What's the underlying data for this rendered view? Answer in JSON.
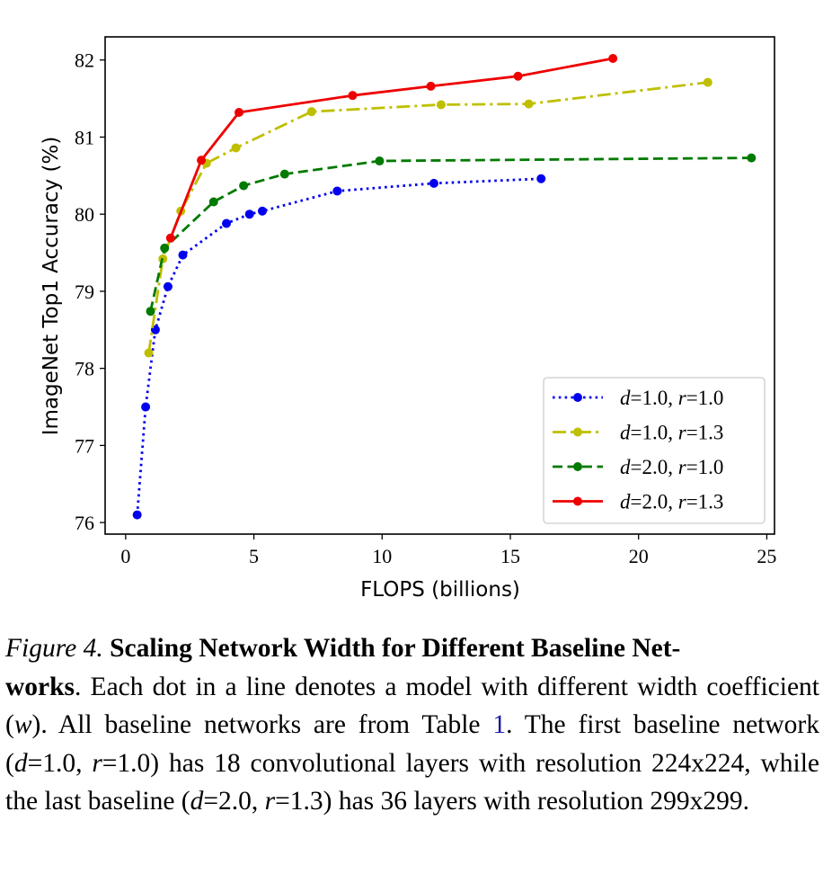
{
  "chart_data": {
    "type": "line",
    "title": "",
    "xlabel": "FLOPS (billions)",
    "ylabel": "ImageNet Top1 Accuracy (%)",
    "xlim": [
      -0.8,
      25.3
    ],
    "ylim": [
      75.85,
      82.3
    ],
    "xticks": [
      0,
      5,
      10,
      15,
      20,
      25
    ],
    "yticks": [
      76,
      77,
      78,
      79,
      80,
      81,
      82
    ],
    "xtick_labels": [
      "0",
      "5",
      "10",
      "15",
      "20",
      "25"
    ],
    "ytick_labels": [
      "76",
      "77",
      "78",
      "79",
      "80",
      "81",
      "82"
    ],
    "legend_position": "lower-right",
    "series": [
      {
        "name": "d=1.0, r=1.0",
        "label_parts": [
          "d",
          "=1.0, ",
          "r",
          "=1.0"
        ],
        "color": "#0000ee",
        "style": "dotted",
        "x": [
          0.45,
          0.78,
          1.16,
          1.65,
          2.23,
          3.93,
          4.83,
          5.33,
          8.25,
          12.02,
          16.2
        ],
        "y": [
          76.1,
          77.5,
          78.5,
          79.06,
          79.47,
          79.88,
          80.0,
          80.04,
          80.3,
          80.4,
          80.46
        ]
      },
      {
        "name": "d=1.0, r=1.3",
        "label_parts": [
          "d",
          "=1.0, ",
          "r",
          "=1.3"
        ],
        "color": "#bfbf00",
        "style": "dashdot",
        "x": [
          0.9,
          1.45,
          2.15,
          3.15,
          4.3,
          7.25,
          12.3,
          15.72,
          22.7
        ],
        "y": [
          78.2,
          79.42,
          80.04,
          80.66,
          80.86,
          81.33,
          81.42,
          81.43,
          81.71
        ]
      },
      {
        "name": "d=2.0, r=1.0",
        "label_parts": [
          "d",
          "=2.0, ",
          "r",
          "=1.0"
        ],
        "color": "#007a00",
        "style": "dashed",
        "x": [
          0.97,
          1.52,
          3.43,
          4.6,
          6.2,
          9.9,
          24.4
        ],
        "y": [
          78.74,
          79.56,
          80.16,
          80.37,
          80.52,
          80.69,
          80.73
        ]
      },
      {
        "name": "d=2.0, r=1.3",
        "label_parts": [
          "d",
          "=2.0, ",
          "r",
          "=1.3"
        ],
        "color": "#ee0000",
        "style": "solid",
        "x": [
          1.75,
          2.95,
          4.42,
          8.85,
          11.9,
          15.3,
          19.0
        ],
        "y": [
          79.69,
          80.7,
          81.32,
          81.54,
          81.66,
          81.79,
          82.02
        ]
      }
    ]
  },
  "caption": {
    "figure_label": "Figure 4.",
    "bold_title": "Scaling Network Width for Different Baseline Networks",
    "bold_title_line1": "Scaling Network Width for Different Baseline Net-",
    "bold_title_line2": "works",
    "s1": ". Each dot in a line denotes a model with different width coefficient (",
    "w_symbol": "w",
    "s2": "). All baseline networks are from Table ",
    "table_ref": "1",
    "s3": ". The first baseline network (",
    "d1": "d",
    "s4": "=1.0, ",
    "r1": "r",
    "s5": "=1.0) has 18 convolutional layers with resolution 224x224, while the last baseline (",
    "d2": "d",
    "s6": "=2.0, ",
    "r2": "r",
    "s7": "=1.3) has 36 layers with resolution 299x299."
  }
}
